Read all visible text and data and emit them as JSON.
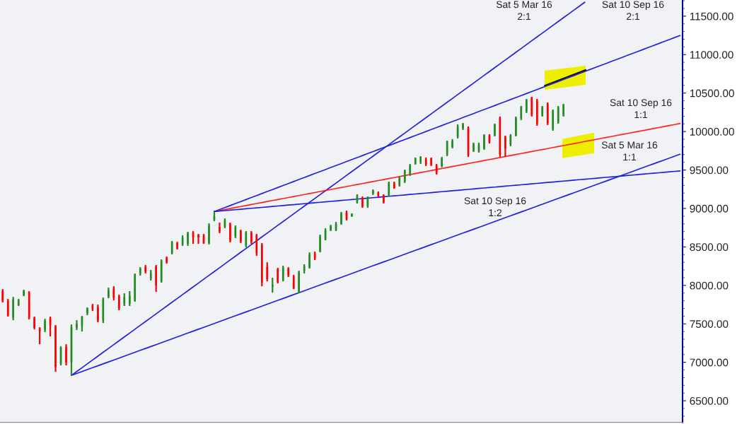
{
  "chart_data": {
    "type": "candlestick",
    "categories": [
      null,
      null,
      null,
      null,
      null,
      null,
      null,
      null,
      null,
      null,
      null,
      null,
      null,
      null,
      null,
      null,
      null,
      null,
      null,
      null,
      null,
      null,
      null,
      null,
      null,
      null,
      null,
      null,
      null,
      null,
      null,
      null,
      null,
      null,
      null,
      null,
      null,
      null,
      null,
      null,
      null,
      null,
      null,
      null,
      null,
      null,
      null,
      null,
      null,
      null,
      null,
      null,
      null,
      null,
      null,
      null,
      null,
      null,
      null,
      null,
      null,
      null,
      null,
      null,
      null,
      null,
      null,
      null,
      null,
      null,
      null,
      null,
      null,
      null,
      null,
      null,
      null,
      null,
      null,
      null,
      null,
      null,
      null,
      null,
      null,
      null,
      null,
      null,
      null,
      null,
      null,
      null,
      null,
      null,
      null,
      null,
      null,
      null,
      null,
      null,
      null,
      null,
      null,
      null,
      null,
      null,
      null,
      null,
      null,
      null,
      null,
      null,
      null,
      null,
      null,
      null,
      null,
      null,
      null,
      null,
      null,
      null,
      null,
      null,
      null,
      null,
      null,
      null,
      null
    ],
    "ohlc": [
      [
        7930,
        7952,
        7778,
        7800
      ],
      [
        7800,
        7824,
        7594,
        7610
      ],
      [
        7580,
        7851,
        7548,
        7820
      ],
      [
        7740,
        7824,
        7732,
        7810
      ],
      [
        7870,
        7943,
        7860,
        7930
      ],
      [
        7910,
        7925,
        7557,
        7580
      ],
      [
        7580,
        7594,
        7428,
        7450
      ],
      [
        7440,
        7456,
        7235,
        7400
      ],
      [
        7420,
        7566,
        7392,
        7540
      ],
      [
        7570,
        7594,
        7337,
        7480
      ],
      [
        7470,
        7484,
        6877,
        6940
      ],
      [
        6980,
        7208,
        6960,
        7190
      ],
      [
        7200,
        7235,
        6960,
        7000
      ],
      [
        7000,
        7493,
        6822,
        7460
      ],
      [
        7450,
        7548,
        7419,
        7500
      ],
      [
        7470,
        7603,
        7401,
        7590
      ],
      [
        7640,
        7713,
        7612,
        7700
      ],
      [
        7740,
        7759,
        7667,
        7690
      ],
      [
        7720,
        7750,
        7520,
        7540
      ],
      [
        7540,
        7842,
        7511,
        7820
      ],
      [
        7850,
        7971,
        7833,
        7940
      ],
      [
        7960,
        7989,
        7805,
        7840
      ],
      [
        7860,
        7879,
        7677,
        7700
      ],
      [
        7760,
        7897,
        7732,
        7850
      ],
      [
        7760,
        7925,
        7732,
        7870
      ],
      [
        7800,
        8154,
        7787,
        8140
      ],
      [
        8150,
        8237,
        8127,
        8220
      ],
      [
        8240,
        8265,
        8155,
        8180
      ],
      [
        8090,
        8200,
        8063,
        8160
      ],
      [
        8250,
        8265,
        7916,
        8000
      ],
      [
        8050,
        8338,
        8035,
        8320
      ],
      [
        8360,
        8375,
        8283,
        8300
      ],
      [
        8420,
        8577,
        8402,
        8560
      ],
      [
        8550,
        8568,
        8467,
        8480
      ],
      [
        8530,
        8651,
        8513,
        8620
      ],
      [
        8540,
        8697,
        8513,
        8680
      ],
      [
        8690,
        8706,
        8540,
        8620
      ],
      [
        8660,
        8669,
        8540,
        8620
      ],
      [
        8650,
        8669,
        8540,
        8550
      ],
      [
        8550,
        8807,
        8531,
        8780
      ],
      [
        8850,
        8954,
        8835,
        8900
      ],
      [
        8760,
        8816,
        8678,
        8700
      ],
      [
        8760,
        8871,
        8743,
        8850
      ],
      [
        8800,
        8816,
        8559,
        8580
      ],
      [
        8640,
        8779,
        8614,
        8760
      ],
      [
        8710,
        8724,
        8550,
        8570
      ],
      [
        8520,
        8706,
        8495,
        8690
      ],
      [
        8690,
        8706,
        8540,
        8560
      ],
      [
        8650,
        8669,
        8384,
        8420
      ],
      [
        8530,
        8550,
        7989,
        8040
      ],
      [
        8240,
        8301,
        8053,
        8080
      ],
      [
        7980,
        8099,
        7906,
        8010
      ],
      [
        8210,
        8228,
        8026,
        8040
      ],
      [
        8060,
        8256,
        8053,
        8230
      ],
      [
        8220,
        8237,
        8108,
        8130
      ],
      [
        8120,
        8136,
        7952,
        7960
      ],
      [
        7910,
        8191,
        7897,
        8170
      ],
      [
        8190,
        8274,
        8155,
        8250
      ],
      [
        8230,
        8430,
        8219,
        8400
      ],
      [
        8420,
        8439,
        8329,
        8350
      ],
      [
        8440,
        8660,
        8430,
        8640
      ],
      [
        8600,
        8743,
        8586,
        8720
      ],
      [
        8720,
        8789,
        8706,
        8770
      ],
      [
        8720,
        8825,
        8706,
        8800
      ],
      [
        8800,
        8954,
        8789,
        8940
      ],
      [
        8950,
        8972,
        8844,
        8860
      ],
      [
        8900,
        8936,
        8890,
        8930
      ],
      [
        9080,
        9184,
        9064,
        9170
      ],
      [
        9140,
        9156,
        9009,
        9020
      ],
      [
        9030,
        9156,
        9009,
        9140
      ],
      [
        9190,
        9248,
        9175,
        9230
      ],
      [
        9210,
        9221,
        9147,
        9160
      ],
      [
        9170,
        9184,
        9064,
        9080
      ],
      [
        9170,
        9349,
        9156,
        9330
      ],
      [
        9330,
        9349,
        9257,
        9270
      ],
      [
        9300,
        9413,
        9285,
        9400
      ],
      [
        9350,
        9505,
        9331,
        9490
      ],
      [
        9440,
        9579,
        9423,
        9560
      ],
      [
        9580,
        9662,
        9570,
        9650
      ],
      [
        9600,
        9680,
        9579,
        9670
      ],
      [
        9640,
        9662,
        9551,
        9570
      ],
      [
        9650,
        9662,
        9551,
        9570
      ],
      [
        9560,
        9579,
        9441,
        9460
      ],
      [
        9550,
        9671,
        9533,
        9650
      ],
      [
        9700,
        9882,
        9680,
        9870
      ],
      [
        9800,
        9901,
        9781,
        9880
      ],
      [
        9930,
        10094,
        9910,
        10070
      ],
      [
        10040,
        10112,
        10020,
        10100
      ],
      [
        10050,
        10066,
        9671,
        9690
      ],
      [
        9750,
        9855,
        9735,
        9840
      ],
      [
        9740,
        9855,
        9726,
        9830
      ],
      [
        9780,
        9965,
        9763,
        9950
      ],
      [
        9950,
        9965,
        9845,
        9860
      ],
      [
        9950,
        10103,
        9937,
        10090
      ],
      [
        10180,
        10195,
        9671,
        9700
      ],
      [
        9930,
        9947,
        9671,
        9780
      ],
      [
        9830,
        9965,
        9809,
        9950
      ],
      [
        9950,
        10195,
        9937,
        10180
      ],
      [
        10170,
        10333,
        10149,
        10320
      ],
      [
        10260,
        10424,
        10241,
        10410
      ],
      [
        10440,
        10452,
        10195,
        10220
      ],
      [
        10400,
        10424,
        10075,
        10100
      ],
      [
        10210,
        10333,
        10195,
        10320
      ],
      [
        10360,
        10378,
        10084,
        10110
      ],
      [
        10030,
        10287,
        10011,
        10270
      ],
      [
        10120,
        10333,
        10103,
        10310
      ],
      [
        10210,
        10360,
        10195,
        10350
      ],
      null,
      null,
      null,
      null,
      null,
      null,
      null,
      null,
      null,
      null,
      null,
      null,
      null,
      null,
      null,
      null,
      null,
      null,
      null,
      null,
      null,
      null
    ],
    "colors": [
      "#ff0000",
      "#ff0000",
      "#228b22",
      "#228b22",
      "#228b22",
      "#ff0000",
      "#ff0000",
      "#ff0000",
      "#228b22",
      "#ff0000",
      "#ff0000",
      "#228b22",
      "#ff0000",
      "#228b22",
      "#228b22",
      "#228b22",
      "#228b22",
      "#ff0000",
      "#ff0000",
      "#228b22",
      "#228b22",
      "#ff0000",
      "#ff0000",
      "#228b22",
      "#228b22",
      "#228b22",
      "#228b22",
      "#ff0000",
      "#228b22",
      "#ff0000",
      "#228b22",
      "#ff0000",
      "#228b22",
      "#ff0000",
      "#228b22",
      "#228b22",
      "#ff0000",
      "#ff0000",
      "#ff0000",
      "#228b22",
      "#228b22",
      "#ff0000",
      "#228b22",
      "#ff0000",
      "#228b22",
      "#ff0000",
      "#228b22",
      "#ff0000",
      "#ff0000",
      "#ff0000",
      "#ff0000",
      "#228b22",
      "#ff0000",
      "#228b22",
      "#ff0000",
      "#ff0000",
      "#228b22",
      "#228b22",
      "#228b22",
      "#ff0000",
      "#228b22",
      "#228b22",
      "#228b22",
      "#228b22",
      "#228b22",
      "#ff0000",
      "#228b22",
      "#228b22",
      "#ff0000",
      "#228b22",
      "#228b22",
      "#ff0000",
      "#ff0000",
      "#228b22",
      "#ff0000",
      "#228b22",
      "#228b22",
      "#228b22",
      "#228b22",
      "#228b22",
      "#ff0000",
      "#ff0000",
      "#ff0000",
      "#228b22",
      "#228b22",
      "#228b22",
      "#228b22",
      "#228b22",
      "#ff0000",
      "#228b22",
      "#228b22",
      "#228b22",
      "#ff0000",
      "#228b22",
      "#ff0000",
      "#ff0000",
      "#228b22",
      "#228b22",
      "#228b22",
      "#228b22",
      "#ff0000",
      "#ff0000",
      "#228b22",
      "#ff0000",
      "#228b22",
      "#228b22",
      "#228b22",
      null,
      null,
      null,
      null,
      null,
      null,
      null,
      null,
      null,
      null,
      null,
      null,
      null,
      null,
      null,
      null,
      null,
      null,
      null,
      null,
      null,
      null
    ],
    "series": [
      {
        "type": "line",
        "color": "#2020e0",
        "values": [
          null,
          null,
          null,
          null,
          null,
          null,
          null,
          null,
          null,
          null,
          null,
          null,
          null,
          6830,
          6880,
          6930,
          6980,
          7030,
          7080,
          7130,
          7180,
          7230,
          7280,
          7330,
          7380,
          7430,
          7480,
          7530,
          7580,
          7630,
          7680,
          7730,
          7780,
          7830,
          7880,
          7930,
          7980,
          8030,
          8080,
          8130,
          8180,
          8230,
          8280,
          8330,
          8380,
          8430,
          8480,
          8530,
          8580,
          8630,
          8680,
          8730,
          8780,
          8830,
          8880,
          8930,
          8980,
          9030,
          9080,
          9130,
          9180,
          9230,
          9280,
          9330,
          9380,
          9430,
          9480,
          9530,
          9580,
          9630,
          9680,
          9730,
          9780,
          9830,
          9880,
          9930,
          9980,
          10030,
          10080,
          10130,
          10180,
          10230,
          10280,
          10330,
          10380,
          10430,
          10480,
          10530,
          10580,
          10630,
          10680,
          10730,
          10780,
          10830,
          10880,
          10930,
          10980,
          11030,
          11080,
          11130,
          11180,
          11230,
          11280,
          11330,
          11380,
          11430,
          11480,
          11530,
          11580,
          11630,
          11680,
          null,
          null,
          null,
          null,
          null,
          null,
          null,
          null,
          null,
          null,
          null,
          null,
          null,
          null,
          null,
          null,
          null,
          null
        ]
      },
      {
        "type": "line",
        "color": "#2020e0",
        "values": [
          null,
          null,
          null,
          null,
          null,
          null,
          null,
          null,
          null,
          null,
          null,
          null,
          null,
          6830,
          6855,
          6880,
          6905,
          6930,
          6955,
          6980,
          7005,
          7030,
          7055,
          7080,
          7105,
          7130,
          7155,
          7180,
          7205,
          7230,
          7255,
          7280,
          7305,
          7330,
          7355,
          7380,
          7405,
          7430,
          7455,
          7480,
          7505,
          7530,
          7555,
          7580,
          7605,
          7630,
          7655,
          7680,
          7705,
          7730,
          7755,
          7780,
          7805,
          7830,
          7855,
          7880,
          7905,
          7930,
          7955,
          7980,
          8005,
          8030,
          8055,
          8080,
          8105,
          8130,
          8155,
          8180,
          8205,
          8230,
          8255,
          8280,
          8305,
          8330,
          8355,
          8380,
          8405,
          8430,
          8455,
          8480,
          8505,
          8530,
          8555,
          8580,
          8605,
          8630,
          8655,
          8680,
          8705,
          8730,
          8755,
          8780,
          8805,
          8830,
          8855,
          8880,
          8905,
          8930,
          8955,
          8980,
          9005,
          9030,
          9055,
          9080,
          9105,
          9130,
          9155,
          9180,
          9205,
          9230,
          9255,
          9280,
          9305,
          9330,
          9355,
          9380,
          9405,
          9430,
          9455,
          9480,
          9505,
          9530,
          9555,
          9580,
          9605,
          9630,
          9655,
          9680,
          9705
        ]
      },
      {
        "type": "line",
        "color": "#2020e0",
        "values": [
          null,
          null,
          null,
          null,
          null,
          null,
          null,
          null,
          null,
          null,
          null,
          null,
          null,
          null,
          null,
          null,
          null,
          null,
          null,
          null,
          null,
          null,
          null,
          null,
          null,
          null,
          null,
          null,
          null,
          null,
          null,
          null,
          null,
          null,
          null,
          null,
          null,
          null,
          null,
          null,
          8960,
          8986,
          9012,
          9038,
          9064,
          9090,
          9116,
          9142,
          9168,
          9194,
          9220,
          9246,
          9272,
          9298,
          9324,
          9350,
          9376,
          9402,
          9428,
          9454,
          9480,
          9506,
          9532,
          9558,
          9584,
          9610,
          9636,
          9662,
          9688,
          9714,
          9740,
          9766,
          9792,
          9818,
          9844,
          9870,
          9896,
          9922,
          9948,
          9974,
          10000,
          10026,
          10052,
          10078,
          10104,
          10130,
          10156,
          10182,
          10208,
          10234,
          10260,
          10286,
          10312,
          10338,
          10364,
          10390,
          10416,
          10442,
          10468,
          10494,
          10520,
          10546,
          10572,
          10598,
          10624,
          10650,
          10676,
          10702,
          10728,
          10754,
          10780,
          10806,
          10832,
          10858,
          10884,
          10910,
          10936,
          10962,
          10988,
          11014,
          11040,
          11066,
          11092,
          11118,
          11144,
          11170,
          11196,
          11222,
          11248
        ]
      },
      {
        "type": "line",
        "color": "#ff2020",
        "values": [
          null,
          null,
          null,
          null,
          null,
          null,
          null,
          null,
          null,
          null,
          null,
          null,
          null,
          null,
          null,
          null,
          null,
          null,
          null,
          null,
          null,
          null,
          null,
          null,
          null,
          null,
          null,
          null,
          null,
          null,
          null,
          null,
          null,
          null,
          null,
          null,
          null,
          null,
          null,
          null,
          8960,
          8973,
          8986,
          8999,
          9012,
          9025,
          9038,
          9051,
          9064,
          9077,
          9090,
          9103,
          9116,
          9129,
          9142,
          9155,
          9168,
          9181,
          9194,
          9207,
          9220,
          9233,
          9246,
          9259,
          9272,
          9285,
          9298,
          9311,
          9324,
          9337,
          9350,
          9363,
          9376,
          9389,
          9402,
          9415,
          9428,
          9441,
          9454,
          9467,
          9480,
          9493,
          9506,
          9519,
          9532,
          9545,
          9558,
          9571,
          9584,
          9597,
          9610,
          9623,
          9636,
          9649,
          9662,
          9675,
          9688,
          9701,
          9714,
          9727,
          9740,
          9753,
          9766,
          9779,
          9792,
          9805,
          9818,
          9831,
          9844,
          9857,
          9870,
          9883,
          9896,
          9909,
          9922,
          9935,
          9948,
          9961,
          9974,
          9987,
          10000,
          10013,
          10026,
          10039,
          10052,
          10065,
          10078,
          10091,
          10104
        ]
      },
      {
        "type": "line",
        "color": "#2020e0",
        "values": [
          null,
          null,
          null,
          null,
          null,
          null,
          null,
          null,
          null,
          null,
          null,
          null,
          null,
          null,
          null,
          null,
          null,
          null,
          null,
          null,
          null,
          null,
          null,
          null,
          null,
          null,
          null,
          null,
          null,
          null,
          null,
          null,
          null,
          null,
          null,
          null,
          null,
          null,
          null,
          null,
          8960,
          8966,
          8972,
          8978,
          8984,
          8990,
          8996,
          9002,
          9008,
          9014,
          9020,
          9026,
          9032,
          9038,
          9044,
          9050,
          9056,
          9062,
          9068,
          9074,
          9080,
          9086,
          9092,
          9098,
          9104,
          9110,
          9116,
          9122,
          9128,
          9134,
          9140,
          9146,
          9152,
          9158,
          9164,
          9170,
          9176,
          9182,
          9188,
          9194,
          9200,
          9206,
          9212,
          9218,
          9224,
          9230,
          9236,
          9242,
          9248,
          9254,
          9260,
          9266,
          9272,
          9278,
          9284,
          9290,
          9296,
          9302,
          9308,
          9314,
          9320,
          9326,
          9332,
          9338,
          9344,
          9350,
          9356,
          9362,
          9368,
          9374,
          9380,
          9386,
          9392,
          9398,
          9404,
          9410,
          9416,
          9422,
          9428,
          9434,
          9440,
          9446,
          9452,
          9458,
          9464,
          9470,
          9476,
          9482,
          9488
        ]
      }
    ],
    "ylim": [
      6220,
      11710
    ],
    "yticks": [
      {
        "value": 6500,
        "label": "6500.00"
      },
      {
        "value": 7000,
        "label": "7000.00"
      },
      {
        "value": 7500,
        "label": "7500.00"
      },
      {
        "value": 8000,
        "label": "8000.00"
      },
      {
        "value": 8500,
        "label": "8500.00"
      },
      {
        "value": 9000,
        "label": "9000.00"
      },
      {
        "value": 9500,
        "label": "9500.00"
      },
      {
        "value": 10000,
        "label": "10000.00"
      },
      {
        "value": 10500,
        "label": "10500.00"
      },
      {
        "value": 11000,
        "label": "11000.00"
      },
      {
        "value": 11500,
        "label": "11500.00"
      }
    ],
    "tick_labels": "y",
    "grid": false,
    "annotations": [
      "Sat 5 Mar 16\n2:1",
      "Sat 10 Sep 16\n2:1",
      "Sat 10 Sep 16\n1:1",
      "Sat 5 Mar 16\n1:1",
      "Sat 10 Sep 16\n1:2"
    ]
  }
}
